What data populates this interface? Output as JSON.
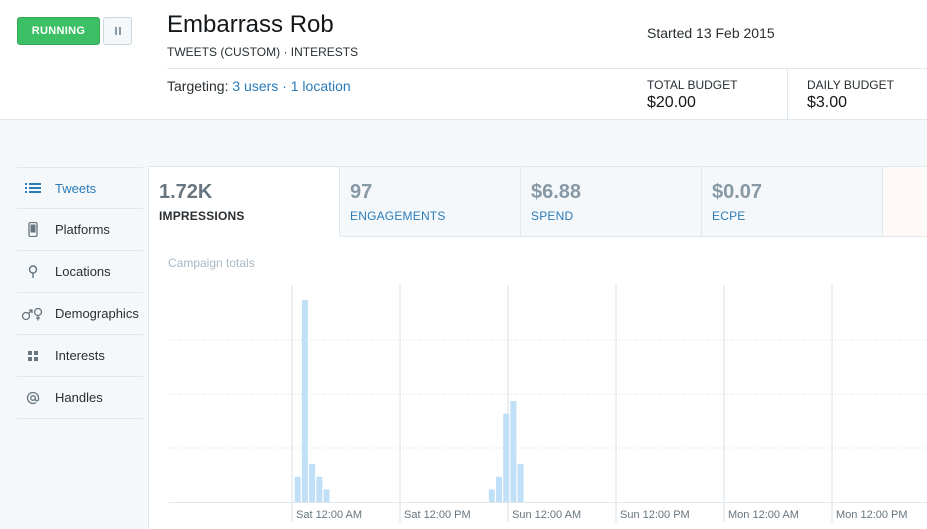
{
  "header": {
    "status_label": "RUNNING",
    "pause_icon": "pause-icon",
    "campaign_name": "Embarrass Rob",
    "campaign_meta": "TWEETS (CUSTOM) · INTERESTS",
    "started": "Started 13 Feb 2015",
    "targeting_prefix": "Targeting: ",
    "targeting_users": "3 users",
    "targeting_sep": " · ",
    "targeting_locations": "1 location",
    "total_budget_label": "TOTAL BUDGET",
    "total_budget_value": "$20.00",
    "daily_budget_label": "DAILY BUDGET",
    "daily_budget_value": "$3.00"
  },
  "sidebar": {
    "items": [
      {
        "label": "Tweets",
        "icon": "list-icon",
        "active": true
      },
      {
        "label": "Platforms",
        "icon": "phone-icon",
        "active": false
      },
      {
        "label": "Locations",
        "icon": "pin-icon",
        "active": false
      },
      {
        "label": "Demographics",
        "icon": "gender-icon",
        "active": false
      },
      {
        "label": "Interests",
        "icon": "grid-icon",
        "active": false
      },
      {
        "label": "Handles",
        "icon": "at-icon",
        "active": false
      }
    ]
  },
  "tabs": [
    {
      "value": "1.72K",
      "label": "IMPRESSIONS",
      "active": true
    },
    {
      "value": "97",
      "label": "ENGAGEMENTS",
      "active": false
    },
    {
      "value": "$6.88",
      "label": "SPEND",
      "active": false
    },
    {
      "value": "$0.07",
      "label": "ECPE",
      "active": false
    }
  ],
  "chart_title": "Campaign totals",
  "colors": {
    "accent": "#2b7bb9",
    "running": "#3dbf66",
    "bar": "#bfe0f7",
    "gridline": "#d7dfe5"
  },
  "chart_data": {
    "type": "bar",
    "title": "",
    "xlabel": "",
    "ylabel": "",
    "grid": true,
    "legend": "none",
    "x_tick_labels": [
      "Sat 12:00 AM",
      "Sat 12:00 PM",
      "Sun 12:00 AM",
      "Sun 12:00 PM",
      "Mon 12:00 AM",
      "Mon 12:00 PM"
    ],
    "series": [
      {
        "values": [
          0,
          0,
          0,
          0,
          0,
          0,
          0,
          0,
          0,
          2,
          16,
          3,
          2,
          1,
          0,
          0,
          0,
          0,
          0,
          0,
          0,
          0,
          0,
          0,
          0,
          0,
          0,
          0,
          0,
          0,
          0,
          0,
          0,
          0,
          0,
          0,
          1,
          2,
          7,
          8,
          3,
          0,
          0,
          0,
          0,
          0,
          0,
          0,
          0,
          0,
          0,
          0,
          0,
          0,
          0,
          0,
          0,
          0,
          0,
          0,
          0,
          0,
          0,
          0,
          0,
          0,
          0,
          0,
          0,
          0,
          0,
          0,
          0,
          0,
          0,
          0,
          0,
          0,
          0,
          0,
          0,
          0,
          0,
          0,
          0,
          0,
          0,
          0,
          0,
          0,
          0,
          0,
          0,
          0,
          0,
          0
        ],
        "note_keys": []
      }
    ]
  }
}
